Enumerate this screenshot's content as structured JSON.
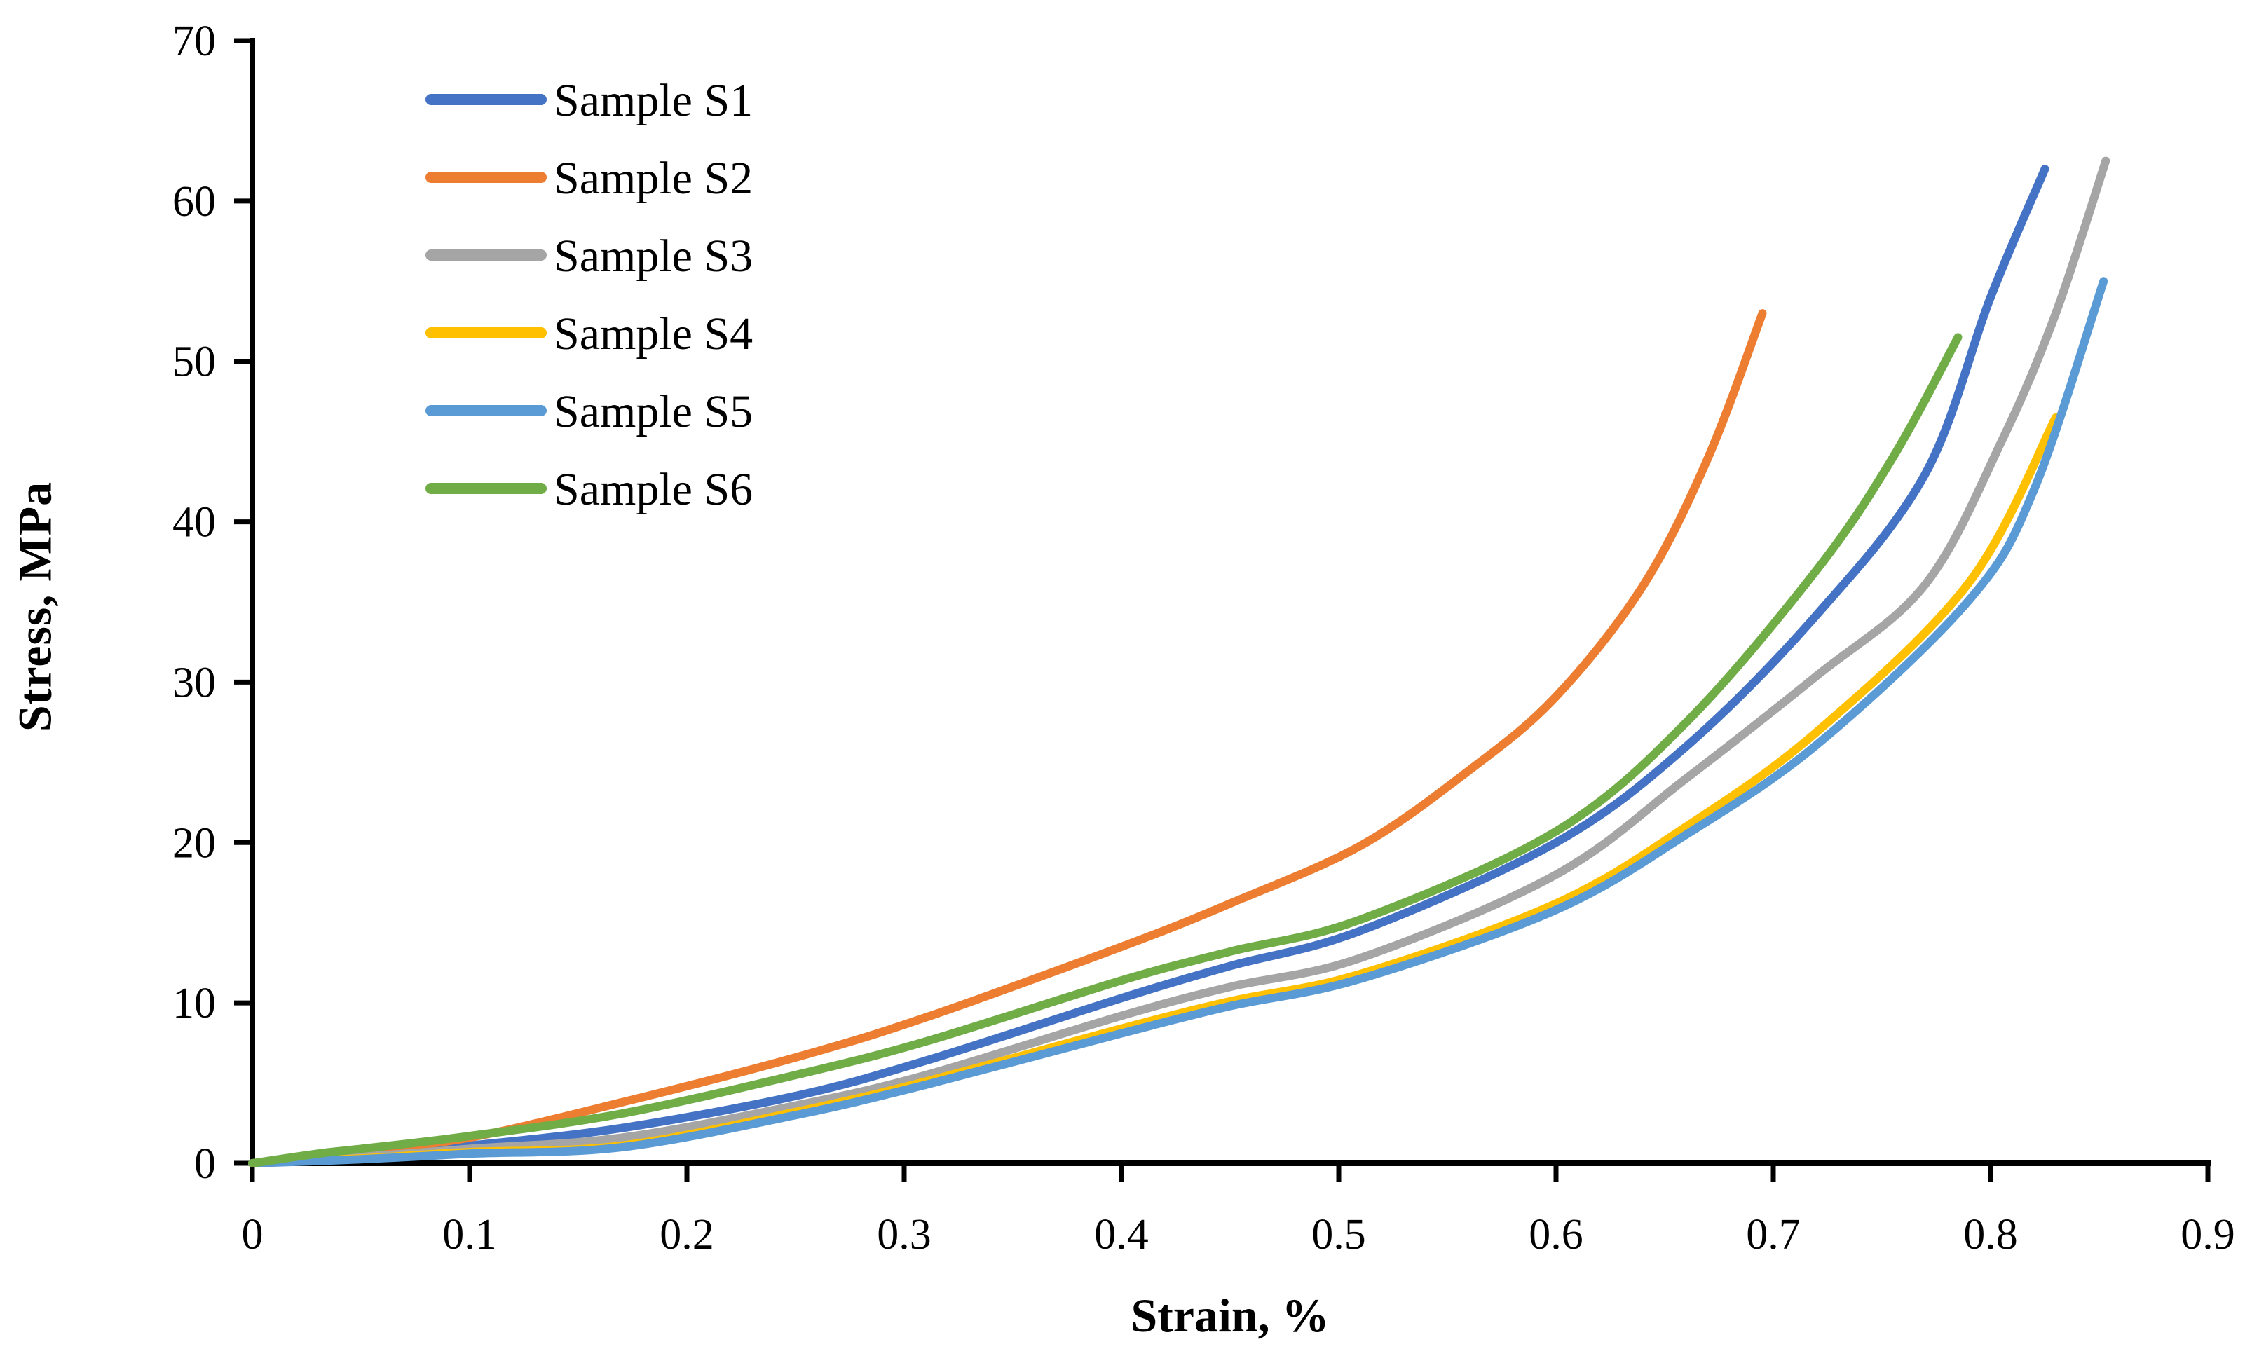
{
  "chart_data": {
    "type": "line",
    "title": "",
    "xlabel": "Strain, %",
    "ylabel": "Stress, MPa",
    "xlim": [
      0,
      0.9
    ],
    "ylim": [
      0,
      70
    ],
    "x_tick_values": [
      0,
      0.1,
      0.2,
      0.3,
      0.4,
      0.5,
      0.6,
      0.7,
      0.8,
      0.9
    ],
    "x_tick_labels": [
      "0",
      "0.1",
      "0.2",
      "0.3",
      "0.4",
      "0.5",
      "0.6",
      "0.7",
      "0.8",
      "0.9"
    ],
    "y_tick_values": [
      0,
      10,
      20,
      30,
      40,
      50,
      60,
      70
    ],
    "y_tick_labels": [
      "0",
      "10",
      "20",
      "30",
      "40",
      "50",
      "60",
      "70"
    ],
    "grid": false,
    "legend_position": "upper-left-inside",
    "axis_color": "#000000",
    "background_color": "#ffffff",
    "series": [
      {
        "name": "Sample S1",
        "color": "#4472C4",
        "points": [
          [
            0,
            0
          ],
          [
            0.05,
            0.5
          ],
          [
            0.1,
            1.1
          ],
          [
            0.17,
            2.2
          ],
          [
            0.25,
            4.2
          ],
          [
            0.31,
            6.4
          ],
          [
            0.4,
            10.3
          ],
          [
            0.45,
            12.3
          ],
          [
            0.51,
            14.5
          ],
          [
            0.6,
            20.0
          ],
          [
            0.66,
            26.0
          ],
          [
            0.72,
            34.2
          ],
          [
            0.77,
            43.0
          ],
          [
            0.8,
            54.0
          ],
          [
            0.825,
            62.0
          ]
        ]
      },
      {
        "name": "Sample S2",
        "color": "#ED7D31",
        "points": [
          [
            0,
            0
          ],
          [
            0.05,
            0.8
          ],
          [
            0.1,
            1.6
          ],
          [
            0.17,
            3.8
          ],
          [
            0.25,
            6.6
          ],
          [
            0.31,
            9.1
          ],
          [
            0.4,
            13.5
          ],
          [
            0.45,
            16.2
          ],
          [
            0.51,
            19.8
          ],
          [
            0.56,
            24.5
          ],
          [
            0.6,
            29.1
          ],
          [
            0.64,
            36.0
          ],
          [
            0.67,
            44.0
          ],
          [
            0.695,
            53.0
          ]
        ]
      },
      {
        "name": "Sample S3",
        "color": "#A5A5A5",
        "points": [
          [
            0,
            0
          ],
          [
            0.05,
            0.4
          ],
          [
            0.1,
            0.9
          ],
          [
            0.17,
            1.6
          ],
          [
            0.25,
            3.6
          ],
          [
            0.31,
            5.5
          ],
          [
            0.4,
            9.2
          ],
          [
            0.45,
            11.0
          ],
          [
            0.51,
            12.8
          ],
          [
            0.6,
            18.0
          ],
          [
            0.66,
            24.0
          ],
          [
            0.72,
            30.4
          ],
          [
            0.77,
            36.1
          ],
          [
            0.805,
            45.0
          ],
          [
            0.83,
            53.0
          ],
          [
            0.853,
            62.5
          ]
        ]
      },
      {
        "name": "Sample S4",
        "color": "#FFC000",
        "points": [
          [
            0,
            0
          ],
          [
            0.05,
            0.3
          ],
          [
            0.1,
            0.7
          ],
          [
            0.17,
            1.1
          ],
          [
            0.25,
            3.2
          ],
          [
            0.31,
            5.1
          ],
          [
            0.4,
            8.4
          ],
          [
            0.45,
            10.1
          ],
          [
            0.51,
            11.8
          ],
          [
            0.6,
            16.2
          ],
          [
            0.66,
            21.0
          ],
          [
            0.72,
            26.9
          ],
          [
            0.79,
            36.2
          ],
          [
            0.83,
            46.5
          ]
        ]
      },
      {
        "name": "Sample S5",
        "color": "#5B9BD5",
        "points": [
          [
            0,
            0
          ],
          [
            0.05,
            0.25
          ],
          [
            0.1,
            0.6
          ],
          [
            0.17,
            1.0
          ],
          [
            0.25,
            3.0
          ],
          [
            0.31,
            4.9
          ],
          [
            0.4,
            8.1
          ],
          [
            0.45,
            9.8
          ],
          [
            0.51,
            11.5
          ],
          [
            0.6,
            15.8
          ],
          [
            0.66,
            20.5
          ],
          [
            0.72,
            26.1
          ],
          [
            0.79,
            35.1
          ],
          [
            0.82,
            42.0
          ],
          [
            0.852,
            55.0
          ]
        ]
      },
      {
        "name": "Sample S6",
        "color": "#70AD47",
        "points": [
          [
            0,
            0
          ],
          [
            0.03,
            0.6
          ],
          [
            0.05,
            0.9
          ],
          [
            0.1,
            1.7
          ],
          [
            0.17,
            3.1
          ],
          [
            0.25,
            5.5
          ],
          [
            0.31,
            7.6
          ],
          [
            0.4,
            11.4
          ],
          [
            0.45,
            13.2
          ],
          [
            0.51,
            15.2
          ],
          [
            0.6,
            20.7
          ],
          [
            0.66,
            27.5
          ],
          [
            0.72,
            37.0
          ],
          [
            0.755,
            44.0
          ],
          [
            0.785,
            51.5
          ]
        ]
      }
    ]
  }
}
